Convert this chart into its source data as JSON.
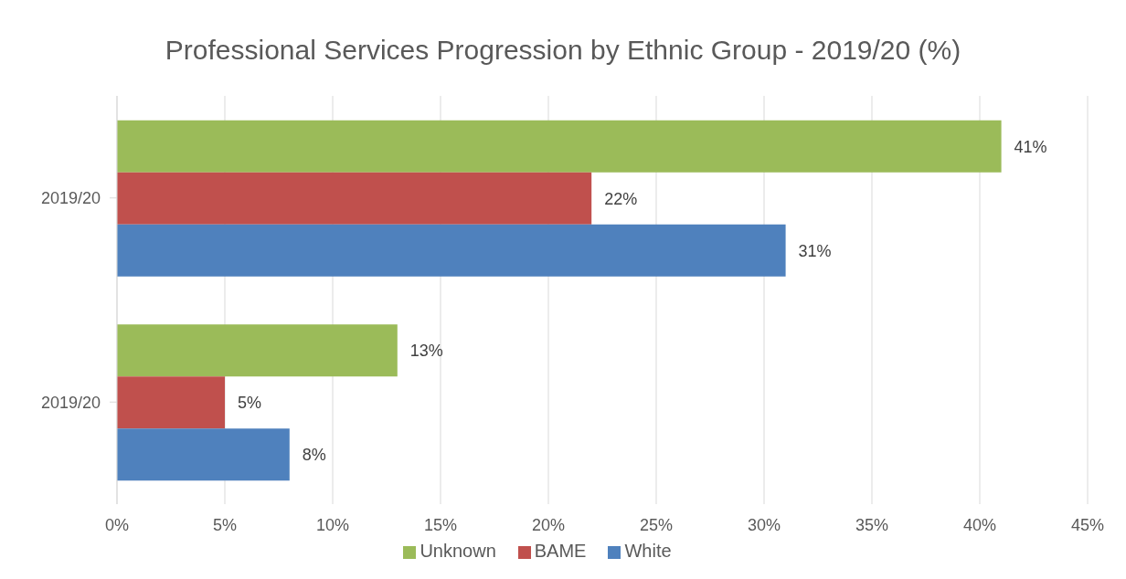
{
  "chart_data": {
    "type": "bar",
    "orientation": "horizontal",
    "title": "Professional Services Progression by Ethnic Group - 2019/20 (%)",
    "categories": [
      "2019/20",
      "2019/20"
    ],
    "series": [
      {
        "name": "Unknown",
        "color": "#9bbb59",
        "values": [
          41,
          13
        ],
        "value_labels": [
          "41%",
          "13%"
        ]
      },
      {
        "name": "BAME",
        "color": "#c0504d",
        "values": [
          22,
          5
        ],
        "value_labels": [
          "22%",
          "5%"
        ]
      },
      {
        "name": "White",
        "color": "#4f81bd",
        "values": [
          31,
          8
        ],
        "value_labels": [
          "31%",
          "8%"
        ]
      }
    ],
    "xlim": [
      0,
      45
    ],
    "xticks": [
      {
        "value": 0,
        "label": "0%"
      },
      {
        "value": 5,
        "label": "5%"
      },
      {
        "value": 10,
        "label": "10%"
      },
      {
        "value": 15,
        "label": "15%"
      },
      {
        "value": 20,
        "label": "20%"
      },
      {
        "value": 25,
        "label": "25%"
      },
      {
        "value": 30,
        "label": "30%"
      },
      {
        "value": 35,
        "label": "35%"
      },
      {
        "value": 40,
        "label": "40%"
      },
      {
        "value": 45,
        "label": "45%"
      }
    ],
    "grid": "x",
    "legend": "bottom"
  }
}
